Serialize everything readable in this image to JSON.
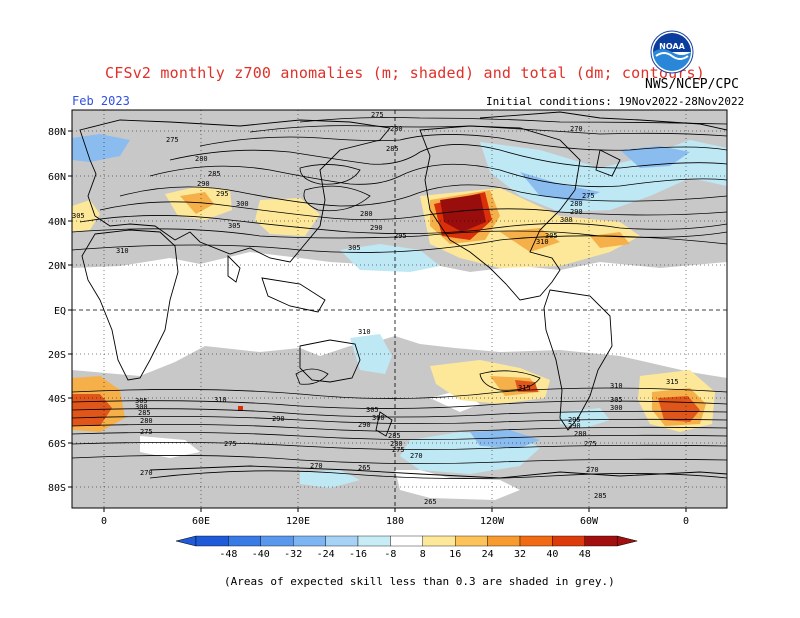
{
  "header": {
    "title": "CFSv2 monthly z700 anomalies (m; shaded) and total (dm; contours)",
    "agency": "NWS/NCEP/CPC",
    "logo_text": "NOAA",
    "month": "Feb 2023",
    "initial_conditions": "Initial conditions: 19Nov2022-28Nov2022"
  },
  "axes": {
    "lat_labels": [
      "80N",
      "60N",
      "40N",
      "20N",
      "EQ",
      "20S",
      "40S",
      "60S",
      "80S"
    ],
    "lon_labels": [
      "0",
      "60E",
      "120E",
      "180",
      "120W",
      "60W",
      "0"
    ]
  },
  "contour_labels": [
    "275",
    "280",
    "285",
    "290",
    "295",
    "300",
    "305",
    "310",
    "315",
    "270",
    "265"
  ],
  "colorbar": {
    "ticks": [
      "-48",
      "-40",
      "-32",
      "-24",
      "-16",
      "-8",
      "8",
      "16",
      "24",
      "32",
      "40",
      "48"
    ],
    "colors": [
      "#1f5bd8",
      "#3a7ae6",
      "#5a98ee",
      "#7db4f2",
      "#a6d2f5",
      "#c8ecf5",
      "#ffffff",
      "#fde89a",
      "#fbc35a",
      "#f79a2f",
      "#f06b14",
      "#de3b0c",
      "#a10f0f"
    ]
  },
  "footnote": "(Areas of expected skill less than 0.3 are shaded in grey.)",
  "anomaly_colors": {
    "grey": "#c8c8c8",
    "light_blue": "#bfe8f5",
    "blue": "#8bbcf0",
    "yellow": "#fde89a",
    "orange": "#f6b04a",
    "red": "#d9300a",
    "dark_red": "#9a0d0d"
  }
}
